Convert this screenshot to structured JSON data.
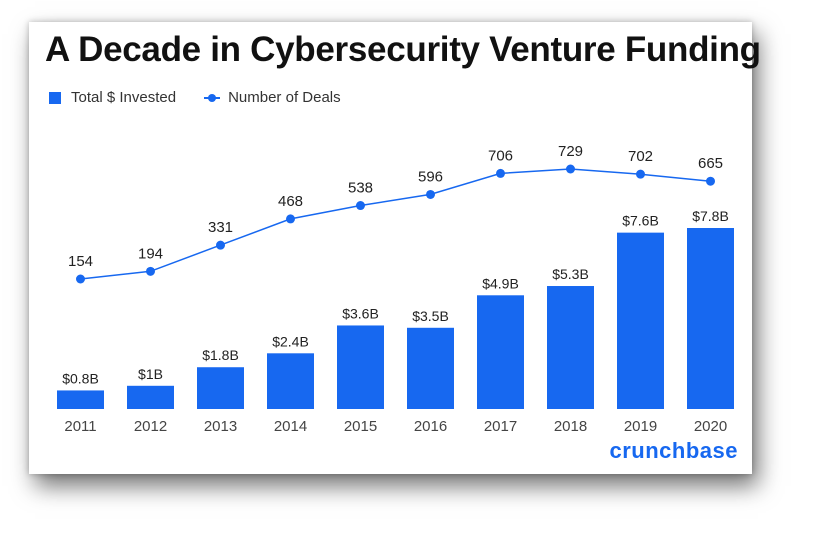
{
  "title": "A Decade in Cybersecurity Venture Funding",
  "brand": "crunchbase",
  "colors": {
    "bar": "#1768f0",
    "line": "#1768f0",
    "text": "#222222",
    "axis_text": "#444444",
    "brand": "#1768f0"
  },
  "chart_data": {
    "type": "bar",
    "title": "A Decade in Cybersecurity Venture Funding",
    "categories": [
      "2011",
      "2012",
      "2013",
      "2014",
      "2015",
      "2016",
      "2017",
      "2018",
      "2019",
      "2020"
    ],
    "series": [
      {
        "name": "Total $ Invested",
        "type": "bar",
        "values": [
          0.8,
          1,
          1.8,
          2.4,
          3.6,
          3.5,
          4.9,
          5.3,
          7.6,
          7.8
        ],
        "labels": [
          "$0.8B",
          "$1B",
          "$1.8B",
          "$2.4B",
          "$3.6B",
          "$3.5B",
          "$4.9B",
          "$5.3B",
          "$7.6B",
          "$7.8B"
        ]
      },
      {
        "name": "Number of Deals",
        "type": "line",
        "values": [
          154,
          194,
          331,
          468,
          538,
          596,
          706,
          729,
          702,
          665
        ],
        "labels": [
          "154",
          "194",
          "331",
          "468",
          "538",
          "596",
          "706",
          "729",
          "702",
          "665"
        ]
      }
    ],
    "legend": "top-left",
    "grid": false
  }
}
